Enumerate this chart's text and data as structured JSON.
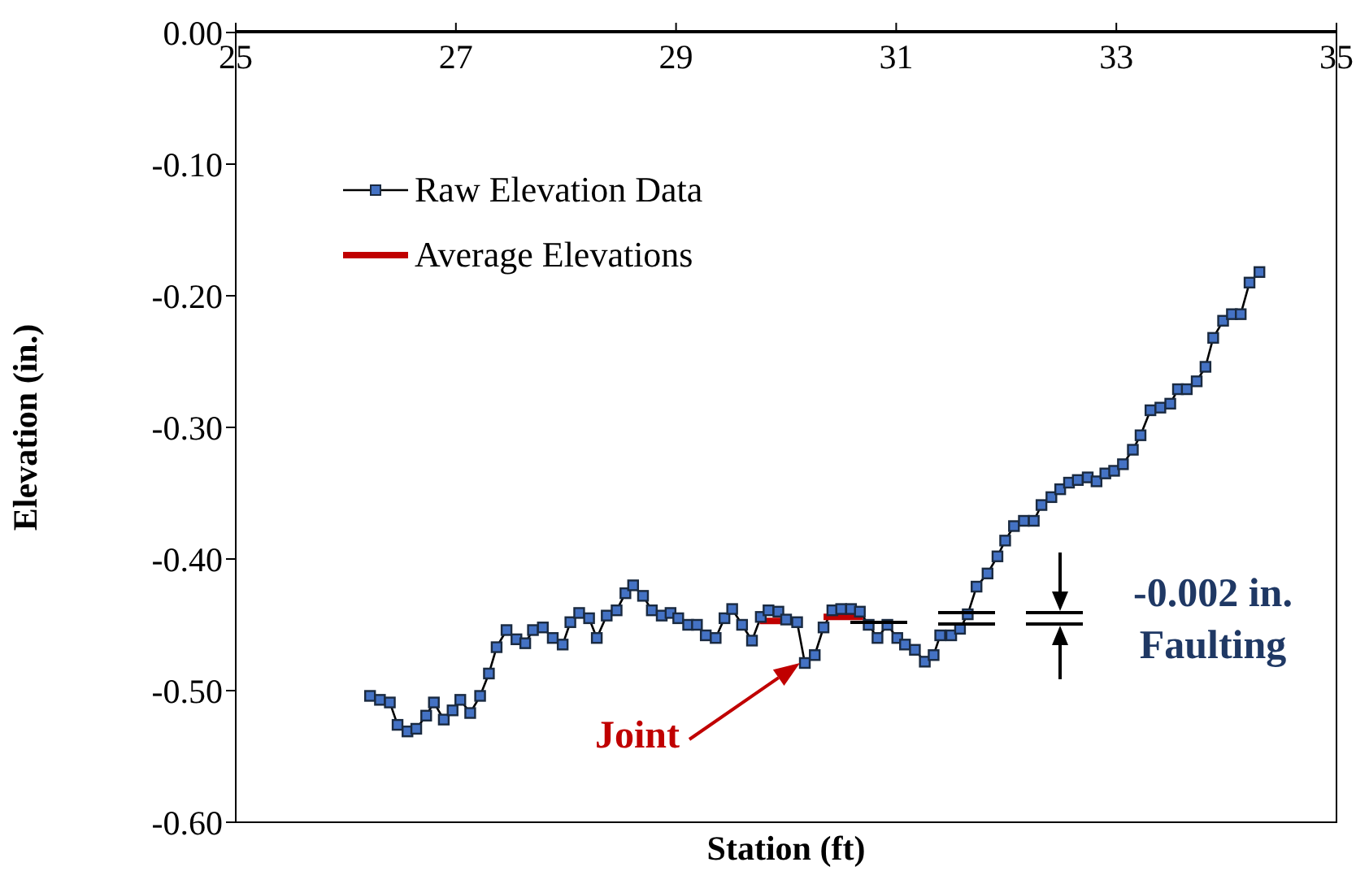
{
  "chart_data": {
    "type": "line",
    "xlabel": "Station (ft)",
    "ylabel": "Elevation (in.)",
    "xlim": [
      25,
      35
    ],
    "xticks": [
      25,
      27,
      29,
      31,
      33,
      35
    ],
    "ylim": [
      -0.6,
      0
    ],
    "yticks": [
      {
        "value": 0,
        "label": "0.00"
      },
      {
        "value": -0.1,
        "label": "-0.10"
      },
      {
        "value": -0.2,
        "label": "-0.20"
      },
      {
        "value": -0.3,
        "label": "-0.30"
      },
      {
        "value": -0.4,
        "label": "-0.40"
      },
      {
        "value": -0.5,
        "label": "-0.50"
      },
      {
        "value": -0.6,
        "label": "-0.60"
      }
    ],
    "grid": false,
    "legend": "top left",
    "marker": "square",
    "line_style": "solid",
    "series": [
      {
        "name": "Raw Elevation Data",
        "color": "#4472c4",
        "x": [
          26.22,
          26.31,
          26.4,
          26.47,
          26.56,
          26.64,
          26.73,
          26.8,
          26.89,
          26.97,
          27.04,
          27.13,
          27.22,
          27.3,
          27.37,
          27.46,
          27.55,
          27.63,
          27.7,
          27.79,
          27.88,
          27.97,
          28.04,
          28.12,
          28.21,
          28.28,
          28.37,
          28.46,
          28.54,
          28.61,
          28.7,
          28.78,
          28.87,
          28.95,
          29.02,
          29.11,
          29.19,
          29.27,
          29.36,
          29.44,
          29.51,
          29.6,
          29.69,
          29.77,
          29.84,
          29.93,
          30.0,
          30.1,
          30.17,
          30.26,
          30.34,
          30.42,
          30.5,
          30.59,
          30.67,
          30.75,
          30.83,
          30.92,
          31.01,
          31.08,
          31.17,
          31.26,
          31.34,
          31.4,
          31.5,
          31.58,
          31.65,
          31.73,
          31.83,
          31.92,
          31.99,
          32.07,
          32.16,
          32.25,
          32.32,
          32.41,
          32.49,
          32.57,
          32.65,
          32.74,
          32.82,
          32.9,
          32.98,
          33.06,
          33.15,
          33.22,
          33.31,
          33.4,
          33.49,
          33.56,
          33.64,
          33.73,
          33.81,
          33.88,
          33.97,
          34.05,
          34.13,
          34.21,
          34.3
        ],
        "values": [
          -0.504,
          -0.507,
          -0.509,
          -0.526,
          -0.531,
          -0.529,
          -0.519,
          -0.509,
          -0.522,
          -0.515,
          -0.507,
          -0.517,
          -0.504,
          -0.487,
          -0.467,
          -0.454,
          -0.461,
          -0.464,
          -0.454,
          -0.452,
          -0.46,
          -0.465,
          -0.448,
          -0.441,
          -0.445,
          -0.46,
          -0.443,
          -0.439,
          -0.426,
          -0.42,
          -0.428,
          -0.439,
          -0.443,
          -0.441,
          -0.445,
          -0.45,
          -0.45,
          -0.458,
          -0.46,
          -0.445,
          -0.438,
          -0.45,
          -0.462,
          -0.444,
          -0.439,
          -0.44,
          -0.446,
          -0.448,
          -0.479,
          -0.473,
          -0.452,
          -0.439,
          -0.438,
          -0.438,
          -0.44,
          -0.45,
          -0.46,
          -0.45,
          -0.46,
          -0.465,
          -0.469,
          -0.478,
          -0.473,
          -0.458,
          -0.458,
          -0.453,
          -0.442,
          -0.421,
          -0.411,
          -0.398,
          -0.386,
          -0.375,
          -0.371,
          -0.371,
          -0.359,
          -0.353,
          -0.347,
          -0.342,
          -0.34,
          -0.338,
          -0.341,
          -0.335,
          -0.333,
          -0.328,
          -0.317,
          -0.306,
          -0.287,
          -0.285,
          -0.282,
          -0.271,
          -0.271,
          -0.265,
          -0.254,
          -0.232,
          -0.219,
          -0.214,
          -0.214,
          -0.19,
          -0.182
        ]
      },
      {
        "name": "Average Elevations",
        "color": "#c00000",
        "marker": "none",
        "x": [
          29.76,
          30.14,
          30.24,
          30.34,
          30.7
        ],
        "values": [
          -0.447,
          -0.447,
          null,
          -0.444,
          -0.444
        ]
      }
    ],
    "annotations": [
      "Joint",
      "-0.002 in. Faulting"
    ]
  }
}
